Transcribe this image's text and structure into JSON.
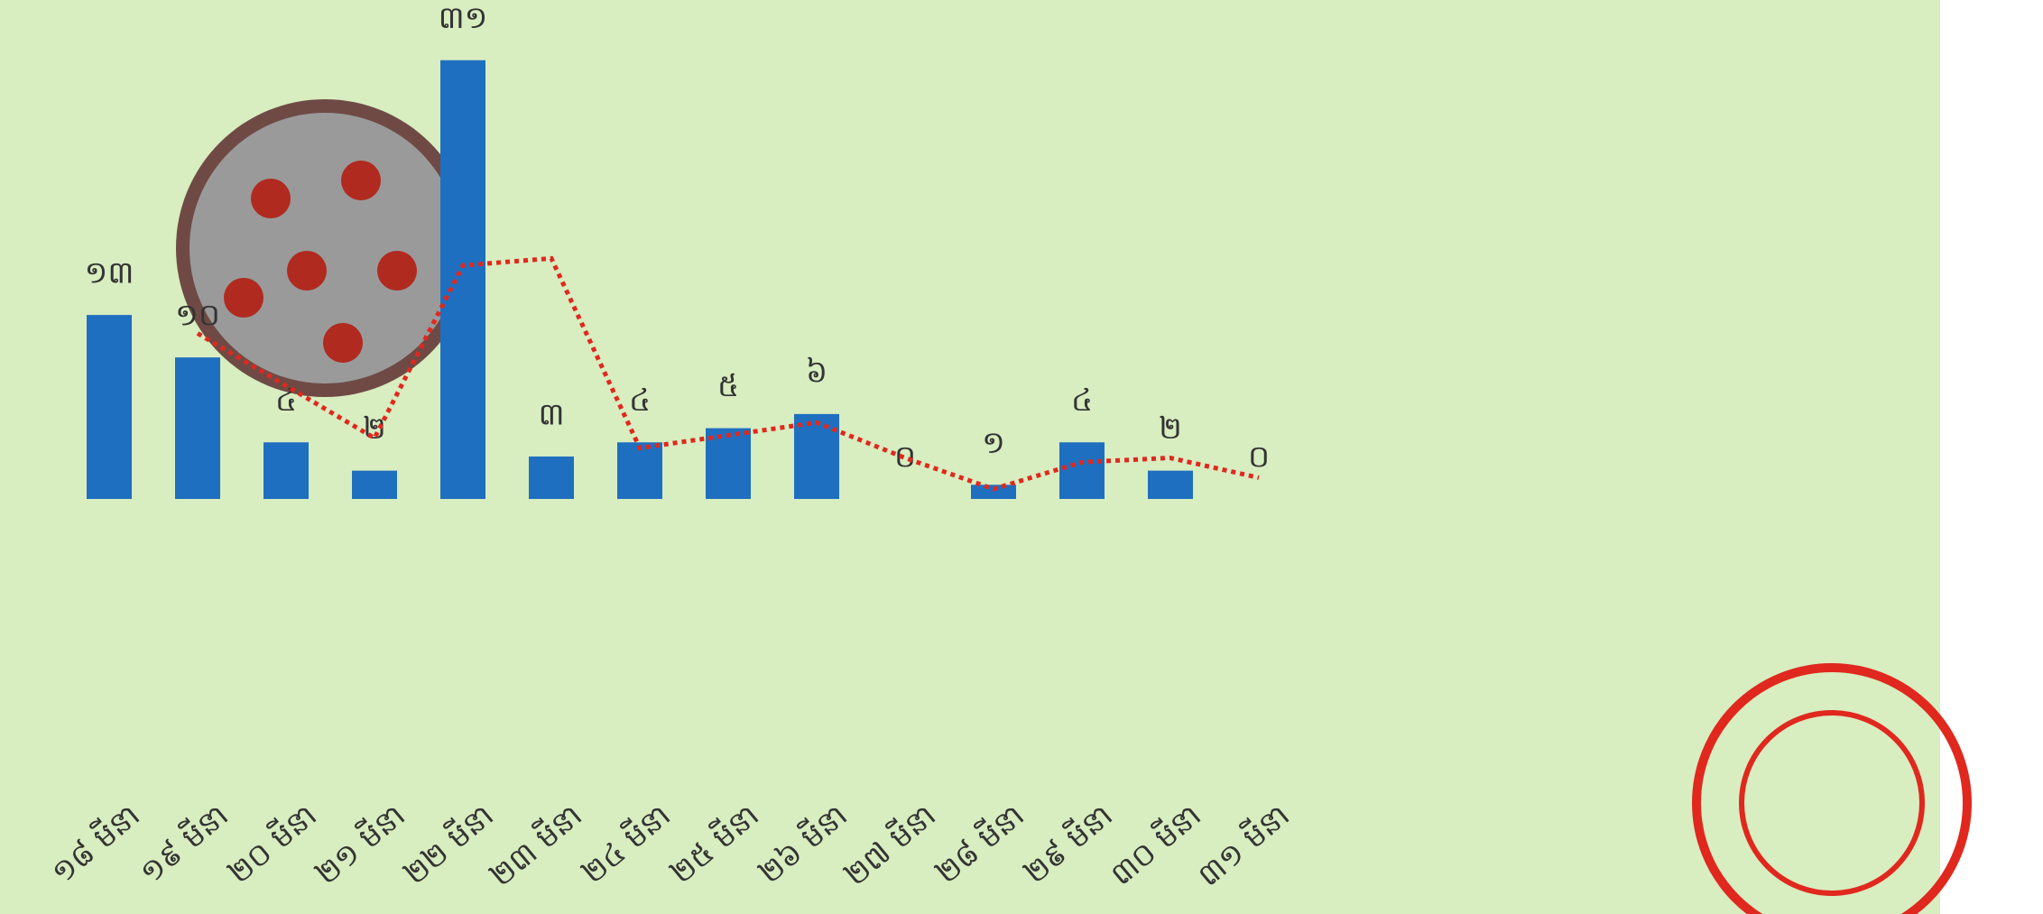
{
  "chart_data": {
    "type": "bar",
    "categories": [
      "១៨ មីនា",
      "១៩ មីនា",
      "២០ មីនា",
      "២១ មីនា",
      "២២ មីនា",
      "២៣ មីនា",
      "២៤ មីនា",
      "២៥ មីនា",
      "២៦ មីនា",
      "២៧ មីនា",
      "២៨ មីនា",
      "២៩ មីនា",
      "៣០ មីនា",
      "៣១ មីនា"
    ],
    "values": [
      13,
      10,
      4,
      2,
      31,
      3,
      4,
      5,
      6,
      0,
      1,
      4,
      2,
      0
    ],
    "value_labels": [
      "១៣",
      "១០",
      "៤",
      "២",
      "៣១",
      "៣",
      "៤",
      "៥",
      "៦",
      "០",
      "១",
      "៤",
      "២",
      "០"
    ],
    "color": "#1f6fc0",
    "trend": {
      "color": "#e0281e",
      "values": [
        null,
        11.7,
        8,
        4.3,
        16.5,
        17,
        3.6,
        4.5,
        5.4,
        2.9,
        0.7,
        2.6,
        2.9,
        1.5
      ]
    },
    "ylim": [
      0,
      35
    ]
  }
}
